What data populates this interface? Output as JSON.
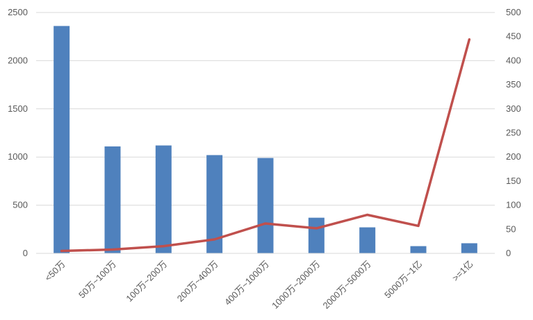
{
  "chart_data": {
    "type": "bar",
    "title": "",
    "xlabel": "",
    "ylabel": "",
    "categories": [
      "<50万",
      "50万~100万",
      "100万~200万",
      "200万~400万",
      "400万~1000万",
      "1000万~2000万",
      "2000万~5000万",
      "5000万~1亿",
      ">=1亿"
    ],
    "series": [
      {
        "type": "bar",
        "axis": "left",
        "color": "#4f81bd",
        "values": [
          2360,
          1110,
          1120,
          1020,
          990,
          370,
          270,
          75,
          105
        ]
      },
      {
        "type": "line",
        "axis": "right",
        "color": "#c0504d",
        "values": [
          5,
          8,
          15,
          29,
          62,
          52,
          80,
          57,
          444
        ]
      }
    ],
    "ylim": [
      0,
      2500
    ],
    "y2lim": [
      0,
      500
    ],
    "yticks": [
      "0",
      "500",
      "1000",
      "1500",
      "2000",
      "2500"
    ],
    "y2ticks": [
      "0",
      "50",
      "100",
      "150",
      "200",
      "250",
      "300",
      "350",
      "400",
      "450",
      "500"
    ],
    "grid": true,
    "legend": "none"
  }
}
